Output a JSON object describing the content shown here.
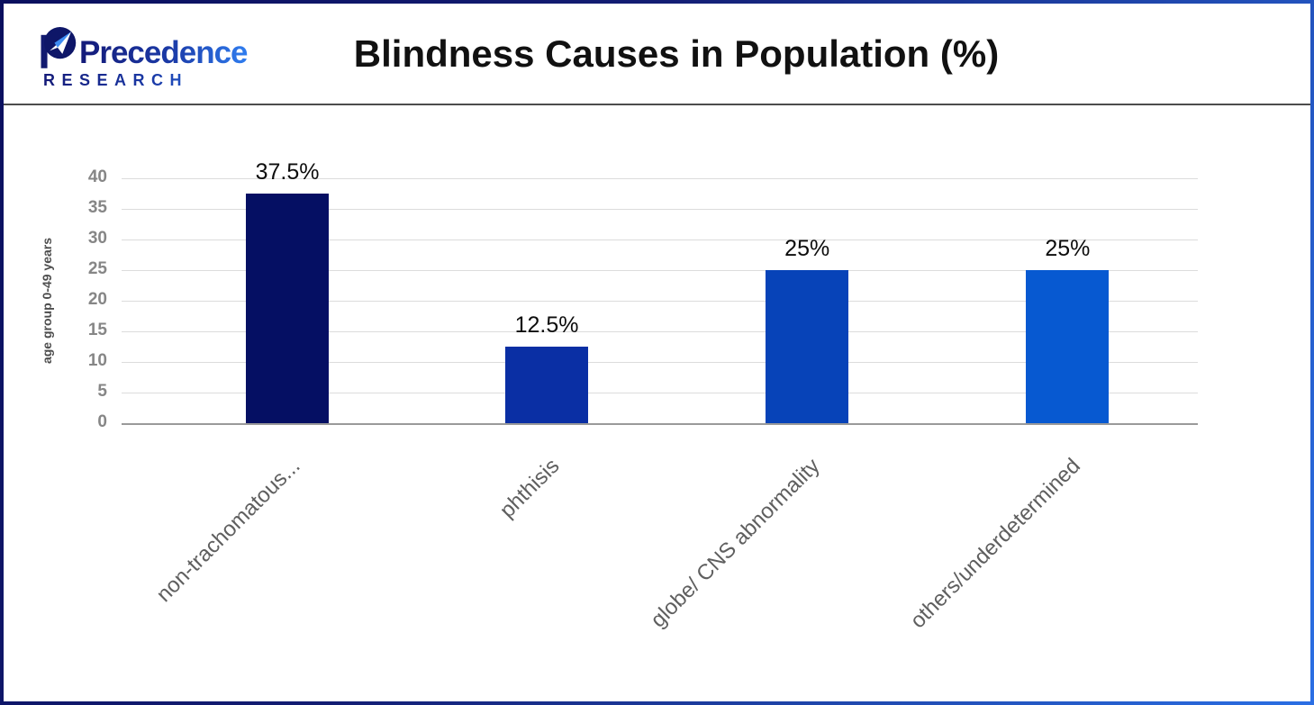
{
  "header": {
    "logo": {
      "line1": "Precedence",
      "line2": "RESEARCH"
    },
    "title": "Blindness Causes in Population (%)"
  },
  "chart_data": {
    "type": "bar",
    "title": "Blindness Causes in Population (%)",
    "categories": [
      "non-trachomatous...",
      "phthisis",
      "globe/ CNS abnormality",
      "others/underdetermined"
    ],
    "values": [
      37.5,
      12.5,
      25,
      25
    ],
    "value_labels": [
      "37.5%",
      "12.5%",
      "25%",
      "25%"
    ],
    "bar_colors": [
      "#050f63",
      "#0a2fa4",
      "#0743b8",
      "#0759d1"
    ],
    "xlabel": "",
    "ylabel": "age group 0-49 years",
    "ylim": [
      0,
      40
    ],
    "yticks": [
      0,
      5,
      10,
      15,
      20,
      25,
      30,
      35,
      40
    ],
    "grid": true,
    "legend": false,
    "gridline_color": "#dcdcdc",
    "axis_line_color": "#9a9a9a"
  }
}
